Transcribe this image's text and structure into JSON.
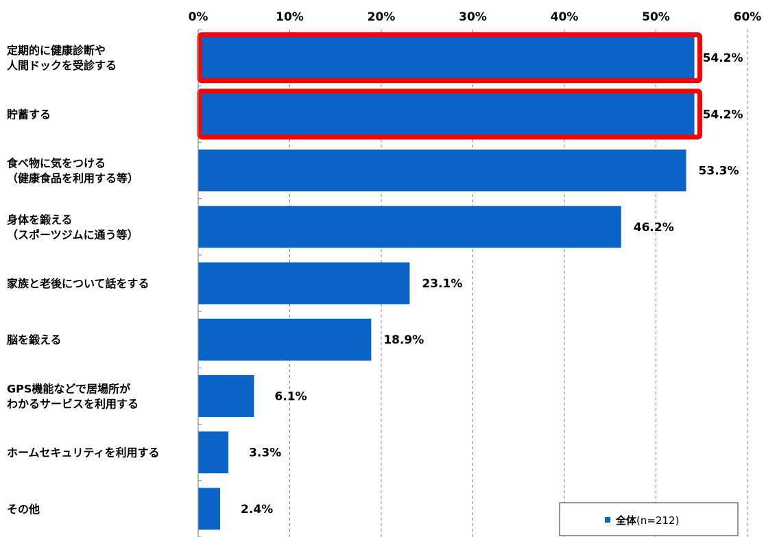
{
  "chart_data": {
    "type": "bar",
    "orientation": "horizontal",
    "categories": [
      [
        "定期的に健康診断や",
        "人間ドックを受診する"
      ],
      [
        "貯蓄する"
      ],
      [
        "食べ物に気をつける",
        "（健康食品を利用する等）"
      ],
      [
        "身体を鍛える",
        "（スポーツジムに通う等）"
      ],
      [
        "家族と老後について話をする"
      ],
      [
        "脳を鍛える"
      ],
      [
        "GPS機能などで居場所が",
        "わかるサービスを利用する"
      ],
      [
        "ホームセキュリティを利用する"
      ],
      [
        "その他"
      ]
    ],
    "series": [
      {
        "name": "全体",
        "values": [
          54.2,
          54.2,
          53.3,
          46.2,
          23.1,
          18.9,
          6.1,
          3.3,
          2.4
        ]
      }
    ],
    "value_labels": [
      "54.2%",
      "54.2%",
      "53.3%",
      "46.2%",
      "23.1%",
      "18.9%",
      "6.1%",
      "3.3%",
      "2.4%"
    ],
    "highlighted": [
      0,
      1
    ],
    "xlim": [
      0,
      60
    ],
    "xticks": [
      0,
      10,
      20,
      30,
      40,
      50,
      60
    ],
    "xtick_labels": [
      "0%",
      "10%",
      "20%",
      "30%",
      "40%",
      "50%",
      "60%"
    ],
    "grid": "vertical-dashed",
    "legend": {
      "position": "bottom-right",
      "series_label": "全体",
      "note": "(n=212)"
    },
    "colors": {
      "bar": "#0a64c8",
      "highlight": "#ff0000",
      "grid": "#808080"
    }
  }
}
